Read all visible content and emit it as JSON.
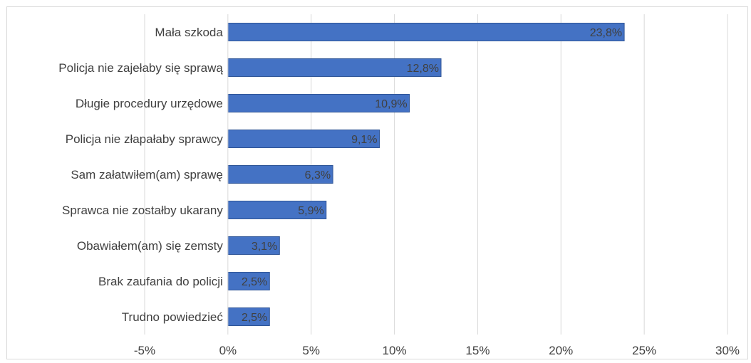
{
  "chart_data": {
    "type": "bar",
    "orientation": "horizontal",
    "title": "",
    "xlabel": "",
    "ylabel": "",
    "categories": [
      "Mała szkoda",
      "Policja nie zajełaby się sprawą",
      "Długie procedury urzędowe",
      "Policja nie złapałaby sprawcy",
      "Sam załatwiłem(am) sprawę",
      "Sprawca nie zostałby ukarany",
      "Obawiałem(am) się zemsty",
      "Brak zaufania do policji",
      "Trudno powiedzieć"
    ],
    "values": [
      23.8,
      12.8,
      10.9,
      9.1,
      6.3,
      5.9,
      3.1,
      2.5,
      2.5
    ],
    "data_labels": [
      "23,8%",
      "12,8%",
      "10,9%",
      "9,1%",
      "6,3%",
      "5,9%",
      "3,1%",
      "2,5%",
      "2,5%"
    ],
    "xlim": [
      -5,
      30
    ],
    "xticks": [
      -5,
      0,
      5,
      10,
      15,
      20,
      25,
      30
    ],
    "xtick_labels": [
      "-5%",
      "0%",
      "5%",
      "10%",
      "15%",
      "20%",
      "25%",
      "30%"
    ],
    "grid": "vertical",
    "legend": "none",
    "bar_color": "#4472c4",
    "bar_border_color": "#2f5597"
  }
}
